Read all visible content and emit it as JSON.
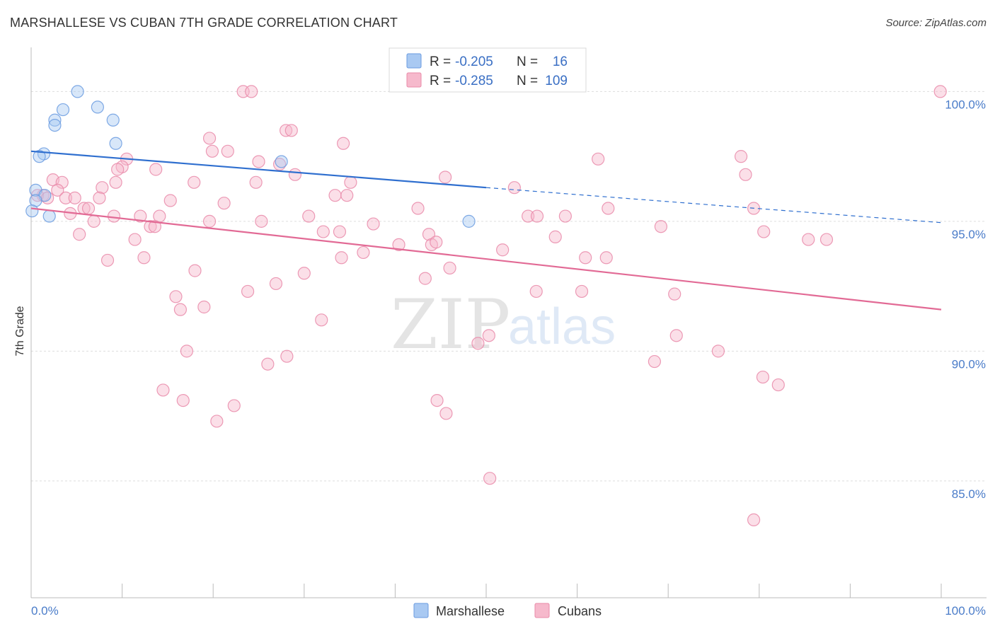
{
  "header": {
    "title": "MARSHALLESE VS CUBAN 7TH GRADE CORRELATION CHART",
    "source": "Source: ZipAtlas.com"
  },
  "watermark": {
    "part1": "ZIP",
    "part2": "atlas"
  },
  "legend": {
    "rows": [
      {
        "r_label": "R =",
        "r_value": "-0.205",
        "n_label": "N =",
        "n_value": "16",
        "color": "#a9c9f2",
        "stroke": "#6a9be0"
      },
      {
        "r_label": "R =",
        "r_value": "-0.285",
        "n_label": "N =",
        "n_value": "109",
        "color": "#f6b9cc",
        "stroke": "#e98aa9"
      }
    ]
  },
  "bottom_legend": {
    "items": [
      "Marshallese",
      "Cubans"
    ]
  },
  "chart_data": {
    "type": "scatter",
    "title": "MARSHALLESE VS CUBAN 7TH GRADE CORRELATION CHART",
    "xlabel": "",
    "ylabel": "7th Grade",
    "x_ticks": [
      "0.0%",
      "100.0%"
    ],
    "y_ticks": [
      "100.0%",
      "95.0%",
      "90.0%",
      "85.0%"
    ],
    "xlim": [
      0,
      100
    ],
    "ylim": [
      80.5,
      101.7
    ],
    "grid": true,
    "series": [
      {
        "name": "Marshallese",
        "color": "#6a9be0",
        "fill": "#a9c9f2",
        "trend": {
          "x0": 0,
          "y0": 97.7,
          "x1": 50,
          "y1": 96.3,
          "dash_to_x": 100,
          "dash_to_y": 94.95,
          "color": "#2f6fcf"
        },
        "points": [
          [
            5.1,
            100.0
          ],
          [
            3.5,
            99.3
          ],
          [
            7.3,
            99.4
          ],
          [
            9.0,
            98.9
          ],
          [
            2.6,
            98.9
          ],
          [
            2.6,
            98.7
          ],
          [
            9.3,
            98.0
          ],
          [
            1.4,
            97.6
          ],
          [
            0.9,
            97.5
          ],
          [
            27.5,
            97.3
          ],
          [
            0.5,
            96.2
          ],
          [
            1.5,
            96.0
          ],
          [
            0.5,
            95.8
          ],
          [
            0.1,
            95.4
          ],
          [
            2.0,
            95.2
          ],
          [
            48.1,
            95.0
          ]
        ]
      },
      {
        "name": "Cubans",
        "color": "#e98aa9",
        "fill": "#f6b9cc",
        "trend": {
          "x0": 0,
          "y0": 95.5,
          "x1": 100,
          "y1": 91.6,
          "color": "#e26a95"
        },
        "points": [
          [
            23.3,
            100.0
          ],
          [
            24.2,
            100.0
          ],
          [
            99.9,
            100.0
          ],
          [
            28.0,
            98.5
          ],
          [
            28.6,
            98.5
          ],
          [
            19.6,
            98.2
          ],
          [
            34.3,
            98.0
          ],
          [
            19.9,
            97.7
          ],
          [
            21.6,
            97.7
          ],
          [
            62.3,
            97.4
          ],
          [
            10.5,
            97.4
          ],
          [
            25.0,
            97.3
          ],
          [
            27.3,
            97.2
          ],
          [
            10.0,
            97.1
          ],
          [
            13.7,
            97.0
          ],
          [
            9.5,
            97.0
          ],
          [
            78.0,
            97.5
          ],
          [
            29.0,
            96.8
          ],
          [
            78.5,
            96.8
          ],
          [
            45.5,
            96.7
          ],
          [
            2.4,
            96.6
          ],
          [
            3.4,
            96.5
          ],
          [
            9.3,
            96.5
          ],
          [
            17.9,
            96.5
          ],
          [
            24.7,
            96.5
          ],
          [
            35.1,
            96.5
          ],
          [
            7.8,
            96.3
          ],
          [
            2.9,
            96.2
          ],
          [
            53.1,
            96.3
          ],
          [
            1.3,
            96.0
          ],
          [
            0.7,
            96.0
          ],
          [
            1.8,
            95.9
          ],
          [
            7.5,
            95.9
          ],
          [
            33.4,
            96.0
          ],
          [
            34.7,
            96.0
          ],
          [
            3.8,
            95.9
          ],
          [
            4.8,
            95.9
          ],
          [
            15.3,
            95.8
          ],
          [
            21.2,
            95.7
          ],
          [
            5.8,
            95.5
          ],
          [
            6.3,
            95.5
          ],
          [
            42.5,
            95.5
          ],
          [
            63.4,
            95.5
          ],
          [
            79.4,
            95.5
          ],
          [
            4.3,
            95.3
          ],
          [
            9.1,
            95.2
          ],
          [
            12.0,
            95.2
          ],
          [
            14.1,
            95.2
          ],
          [
            30.5,
            95.2
          ],
          [
            54.6,
            95.2
          ],
          [
            55.6,
            95.2
          ],
          [
            58.7,
            95.2
          ],
          [
            19.6,
            95.0
          ],
          [
            25.3,
            95.0
          ],
          [
            6.9,
            95.0
          ],
          [
            13.1,
            94.8
          ],
          [
            13.6,
            94.8
          ],
          [
            37.6,
            94.9
          ],
          [
            69.2,
            94.8
          ],
          [
            32.1,
            94.6
          ],
          [
            33.9,
            94.6
          ],
          [
            80.5,
            94.6
          ],
          [
            5.3,
            94.5
          ],
          [
            43.7,
            94.5
          ],
          [
            57.6,
            94.4
          ],
          [
            11.4,
            94.3
          ],
          [
            85.4,
            94.3
          ],
          [
            87.4,
            94.3
          ],
          [
            40.4,
            94.1
          ],
          [
            44.0,
            94.1
          ],
          [
            44.5,
            94.2
          ],
          [
            51.8,
            93.9
          ],
          [
            36.5,
            93.8
          ],
          [
            34.1,
            93.6
          ],
          [
            60.9,
            93.6
          ],
          [
            63.2,
            93.6
          ],
          [
            8.4,
            93.5
          ],
          [
            12.4,
            93.6
          ],
          [
            46.0,
            93.2
          ],
          [
            18.0,
            93.1
          ],
          [
            30.0,
            93.0
          ],
          [
            43.3,
            92.8
          ],
          [
            26.9,
            92.6
          ],
          [
            23.8,
            92.3
          ],
          [
            55.5,
            92.3
          ],
          [
            60.5,
            92.3
          ],
          [
            70.7,
            92.2
          ],
          [
            15.9,
            92.1
          ],
          [
            16.4,
            91.6
          ],
          [
            19.0,
            91.7
          ],
          [
            31.9,
            91.2
          ],
          [
            50.3,
            90.6
          ],
          [
            49.1,
            90.3
          ],
          [
            70.9,
            90.6
          ],
          [
            17.1,
            90.0
          ],
          [
            75.5,
            90.0
          ],
          [
            28.1,
            89.8
          ],
          [
            26.0,
            89.5
          ],
          [
            68.5,
            89.6
          ],
          [
            80.4,
            89.0
          ],
          [
            82.1,
            88.7
          ],
          [
            14.5,
            88.5
          ],
          [
            16.7,
            88.1
          ],
          [
            22.3,
            87.9
          ],
          [
            44.6,
            88.1
          ],
          [
            45.6,
            87.6
          ],
          [
            20.4,
            87.3
          ],
          [
            50.4,
            85.1
          ],
          [
            79.4,
            83.5
          ]
        ]
      }
    ]
  }
}
